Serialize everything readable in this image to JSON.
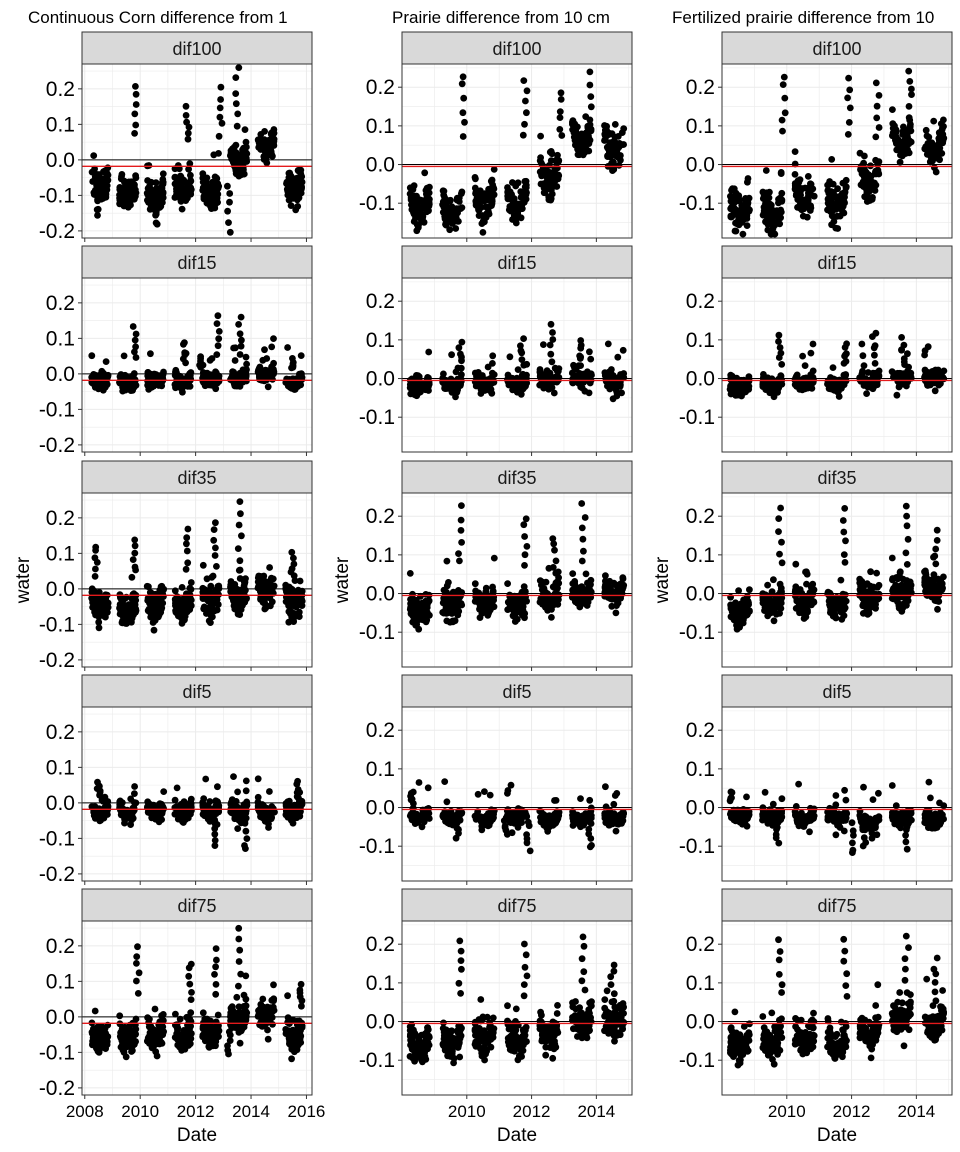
{
  "chart_data": [
    {
      "type": "scatter",
      "title": "Continuous Corn difference from 1",
      "xlabel": "Date",
      "ylabel": "water",
      "x_ticks": [
        "2008",
        "2010",
        "2012",
        "2014",
        "2016"
      ],
      "xlim": [
        2007.9,
        2016.2
      ],
      "y_ticks": [
        "0.2",
        "0.1",
        "0.0",
        "-0.1",
        "-0.2"
      ],
      "ylim": [
        -0.22,
        0.27
      ],
      "data_range": [
        2008.1,
        2015.9
      ],
      "mean_line": -0.018,
      "zero_line": 0,
      "panels": [
        {
          "name": "dif100",
          "base": [
            -0.05,
            -0.07,
            -0.08,
            -0.06,
            -0.07,
            0.02,
            0.06,
            -0.06,
            -0.05
          ],
          "amp": 0.035,
          "noise": 0.03,
          "peaks": [
            [
              2009.8,
              0.21
            ],
            [
              2011.7,
              0.15
            ],
            [
              2012.9,
              0.2
            ],
            [
              2013.5,
              0.26
            ],
            [
              2013.2,
              -0.2
            ],
            [
              2010.6,
              -0.18
            ],
            [
              2008.5,
              -0.16
            ]
          ]
        },
        {
          "name": "dif15",
          "base": [
            -0.01,
            -0.015,
            -0.01,
            -0.01,
            -0.005,
            0.0,
            0.01,
            -0.01,
            -0.015
          ],
          "amp": 0.015,
          "noise": 0.015,
          "peaks": [
            [
              2009.8,
              0.13
            ],
            [
              2011.6,
              0.09
            ],
            [
              2012.8,
              0.16
            ],
            [
              2013.6,
              0.16
            ],
            [
              2012.2,
              0.05
            ],
            [
              2015.5,
              0.04
            ]
          ]
        },
        {
          "name": "dif35",
          "base": [
            -0.03,
            -0.04,
            -0.02,
            -0.03,
            -0.01,
            0.0,
            0.02,
            -0.02,
            -0.03
          ],
          "amp": 0.03,
          "noise": 0.03,
          "peaks": [
            [
              2008.4,
              0.12
            ],
            [
              2009.8,
              0.14
            ],
            [
              2011.7,
              0.17
            ],
            [
              2012.7,
              0.19
            ],
            [
              2013.6,
              0.24
            ],
            [
              2015.5,
              0.1
            ],
            [
              2012.5,
              -0.1
            ]
          ]
        },
        {
          "name": "dif5",
          "base": [
            -0.01,
            -0.01,
            -0.005,
            -0.01,
            -0.01,
            -0.005,
            -0.01,
            -0.01,
            -0.01
          ],
          "amp": 0.025,
          "noise": 0.015,
          "peaks": [
            [
              2012.7,
              -0.12
            ],
            [
              2013.8,
              -0.13
            ],
            [
              2008.5,
              0.06
            ],
            [
              2015.7,
              0.06
            ]
          ]
        },
        {
          "name": "dif75",
          "base": [
            -0.04,
            -0.04,
            -0.03,
            -0.03,
            -0.02,
            0.01,
            0.03,
            -0.03,
            -0.04
          ],
          "amp": 0.03,
          "noise": 0.03,
          "peaks": [
            [
              2009.9,
              0.2
            ],
            [
              2011.8,
              0.15
            ],
            [
              2012.7,
              0.19
            ],
            [
              2013.6,
              0.25
            ],
            [
              2013.2,
              -0.11
            ],
            [
              2015.8,
              0.09
            ]
          ]
        }
      ]
    },
    {
      "type": "scatter",
      "title": "Prairie difference from 10 cm",
      "xlabel": "Date",
      "ylabel": "water",
      "x_ticks": [
        "2010",
        "2012",
        "2014"
      ],
      "xlim": [
        2008.0,
        2015.1
      ],
      "y_ticks": [
        "0.2",
        "0.1",
        "0.0",
        "-0.1"
      ],
      "ylim": [
        -0.19,
        0.26
      ],
      "data_range": [
        2008.2,
        2014.9
      ],
      "mean_line": -0.005,
      "zero_line": 0,
      "panels": [
        {
          "name": "dif100",
          "base": [
            -0.08,
            -0.09,
            -0.06,
            -0.07,
            0.0,
            0.1,
            0.08,
            -0.02
          ],
          "amp": 0.05,
          "noise": 0.03,
          "peaks": [
            [
              2009.9,
              0.23
            ],
            [
              2011.8,
              0.22
            ],
            [
              2013.8,
              0.24
            ],
            [
              2008.4,
              -0.17
            ],
            [
              2012.9,
              0.19
            ]
          ]
        },
        {
          "name": "dif15",
          "base": [
            -0.01,
            -0.005,
            0.0,
            0.0,
            0.005,
            0.01,
            0.005,
            -0.005
          ],
          "amp": 0.015,
          "noise": 0.015,
          "peaks": [
            [
              2009.8,
              0.09
            ],
            [
              2011.7,
              0.1
            ],
            [
              2012.6,
              0.14
            ],
            [
              2013.5,
              0.1
            ],
            [
              2008.3,
              -0.04
            ]
          ]
        },
        {
          "name": "dif35",
          "base": [
            -0.03,
            -0.01,
            0.0,
            -0.01,
            0.01,
            0.02,
            0.02,
            -0.005
          ],
          "amp": 0.025,
          "noise": 0.025,
          "peaks": [
            [
              2009.8,
              0.22
            ],
            [
              2011.8,
              0.2
            ],
            [
              2013.6,
              0.23
            ],
            [
              2008.4,
              -0.08
            ],
            [
              2012.7,
              0.15
            ]
          ]
        },
        {
          "name": "dif5",
          "base": [
            -0.01,
            -0.015,
            -0.02,
            -0.015,
            -0.02,
            -0.02,
            -0.02,
            -0.02
          ],
          "amp": 0.015,
          "noise": 0.012,
          "peaks": [
            [
              2008.3,
              0.04
            ],
            [
              2011.9,
              -0.11
            ],
            [
              2013.8,
              -0.11
            ],
            [
              2009.7,
              -0.08
            ],
            [
              2011.2,
              -0.07
            ]
          ]
        },
        {
          "name": "dif75",
          "base": [
            -0.04,
            -0.03,
            -0.02,
            -0.03,
            -0.01,
            0.02,
            0.02,
            -0.02
          ],
          "amp": 0.03,
          "noise": 0.03,
          "peaks": [
            [
              2009.8,
              0.21
            ],
            [
              2011.8,
              0.2
            ],
            [
              2013.6,
              0.22
            ],
            [
              2008.3,
              -0.09
            ],
            [
              2014.5,
              0.15
            ]
          ]
        }
      ]
    },
    {
      "type": "scatter",
      "title": "Fertilized prairie difference from 10",
      "xlabel": "Date",
      "ylabel": "water",
      "x_ticks": [
        "2010",
        "2012",
        "2014"
      ],
      "xlim": [
        2008.0,
        2015.1
      ],
      "y_ticks": [
        "0.2",
        "0.1",
        "0.0",
        "-0.1"
      ],
      "ylim": [
        -0.19,
        0.26
      ],
      "data_range": [
        2008.2,
        2014.9
      ],
      "mean_line": -0.005,
      "zero_line": 0,
      "panels": [
        {
          "name": "dif100",
          "base": [
            -0.09,
            -0.09,
            -0.05,
            -0.07,
            0.0,
            0.1,
            0.08,
            0.0
          ],
          "amp": 0.05,
          "noise": 0.03,
          "peaks": [
            [
              2009.9,
              0.23
            ],
            [
              2011.9,
              0.23
            ],
            [
              2013.8,
              0.24
            ],
            [
              2008.4,
              -0.17
            ],
            [
              2012.8,
              0.21
            ]
          ]
        },
        {
          "name": "dif15",
          "base": [
            -0.01,
            -0.005,
            0.0,
            0.0,
            0.005,
            0.01,
            0.01,
            -0.005
          ],
          "amp": 0.015,
          "noise": 0.015,
          "peaks": [
            [
              2009.8,
              0.11
            ],
            [
              2011.8,
              0.09
            ],
            [
              2012.7,
              0.12
            ],
            [
              2013.6,
              0.1
            ],
            [
              2008.3,
              -0.04
            ]
          ]
        },
        {
          "name": "dif35",
          "base": [
            -0.03,
            -0.01,
            0.0,
            -0.01,
            0.01,
            0.02,
            0.03,
            -0.005
          ],
          "amp": 0.025,
          "noise": 0.025,
          "peaks": [
            [
              2009.8,
              0.22
            ],
            [
              2011.8,
              0.22
            ],
            [
              2013.7,
              0.23
            ],
            [
              2008.4,
              -0.08
            ],
            [
              2014.6,
              0.16
            ]
          ]
        },
        {
          "name": "dif5",
          "base": [
            -0.01,
            -0.015,
            -0.02,
            -0.015,
            -0.03,
            -0.02,
            -0.02,
            -0.02
          ],
          "amp": 0.015,
          "noise": 0.012,
          "peaks": [
            [
              2008.3,
              0.04
            ],
            [
              2012.0,
              -0.12
            ],
            [
              2013.7,
              -0.1
            ],
            [
              2009.7,
              -0.09
            ],
            [
              2012.4,
              -0.1
            ]
          ]
        },
        {
          "name": "dif75",
          "base": [
            -0.04,
            -0.03,
            -0.02,
            -0.03,
            -0.01,
            0.03,
            0.02,
            -0.02
          ],
          "amp": 0.03,
          "noise": 0.03,
          "peaks": [
            [
              2009.8,
              0.21
            ],
            [
              2011.8,
              0.21
            ],
            [
              2013.7,
              0.22
            ],
            [
              2008.3,
              -0.09
            ],
            [
              2014.6,
              0.16
            ]
          ]
        }
      ]
    }
  ],
  "colors": {
    "points": "#000000",
    "mean_line": "#e41a1c",
    "zero_line": "#000000",
    "strip_bg": "#d9d9d9",
    "grid": "#ebebeb",
    "panel_border": "#333333"
  }
}
